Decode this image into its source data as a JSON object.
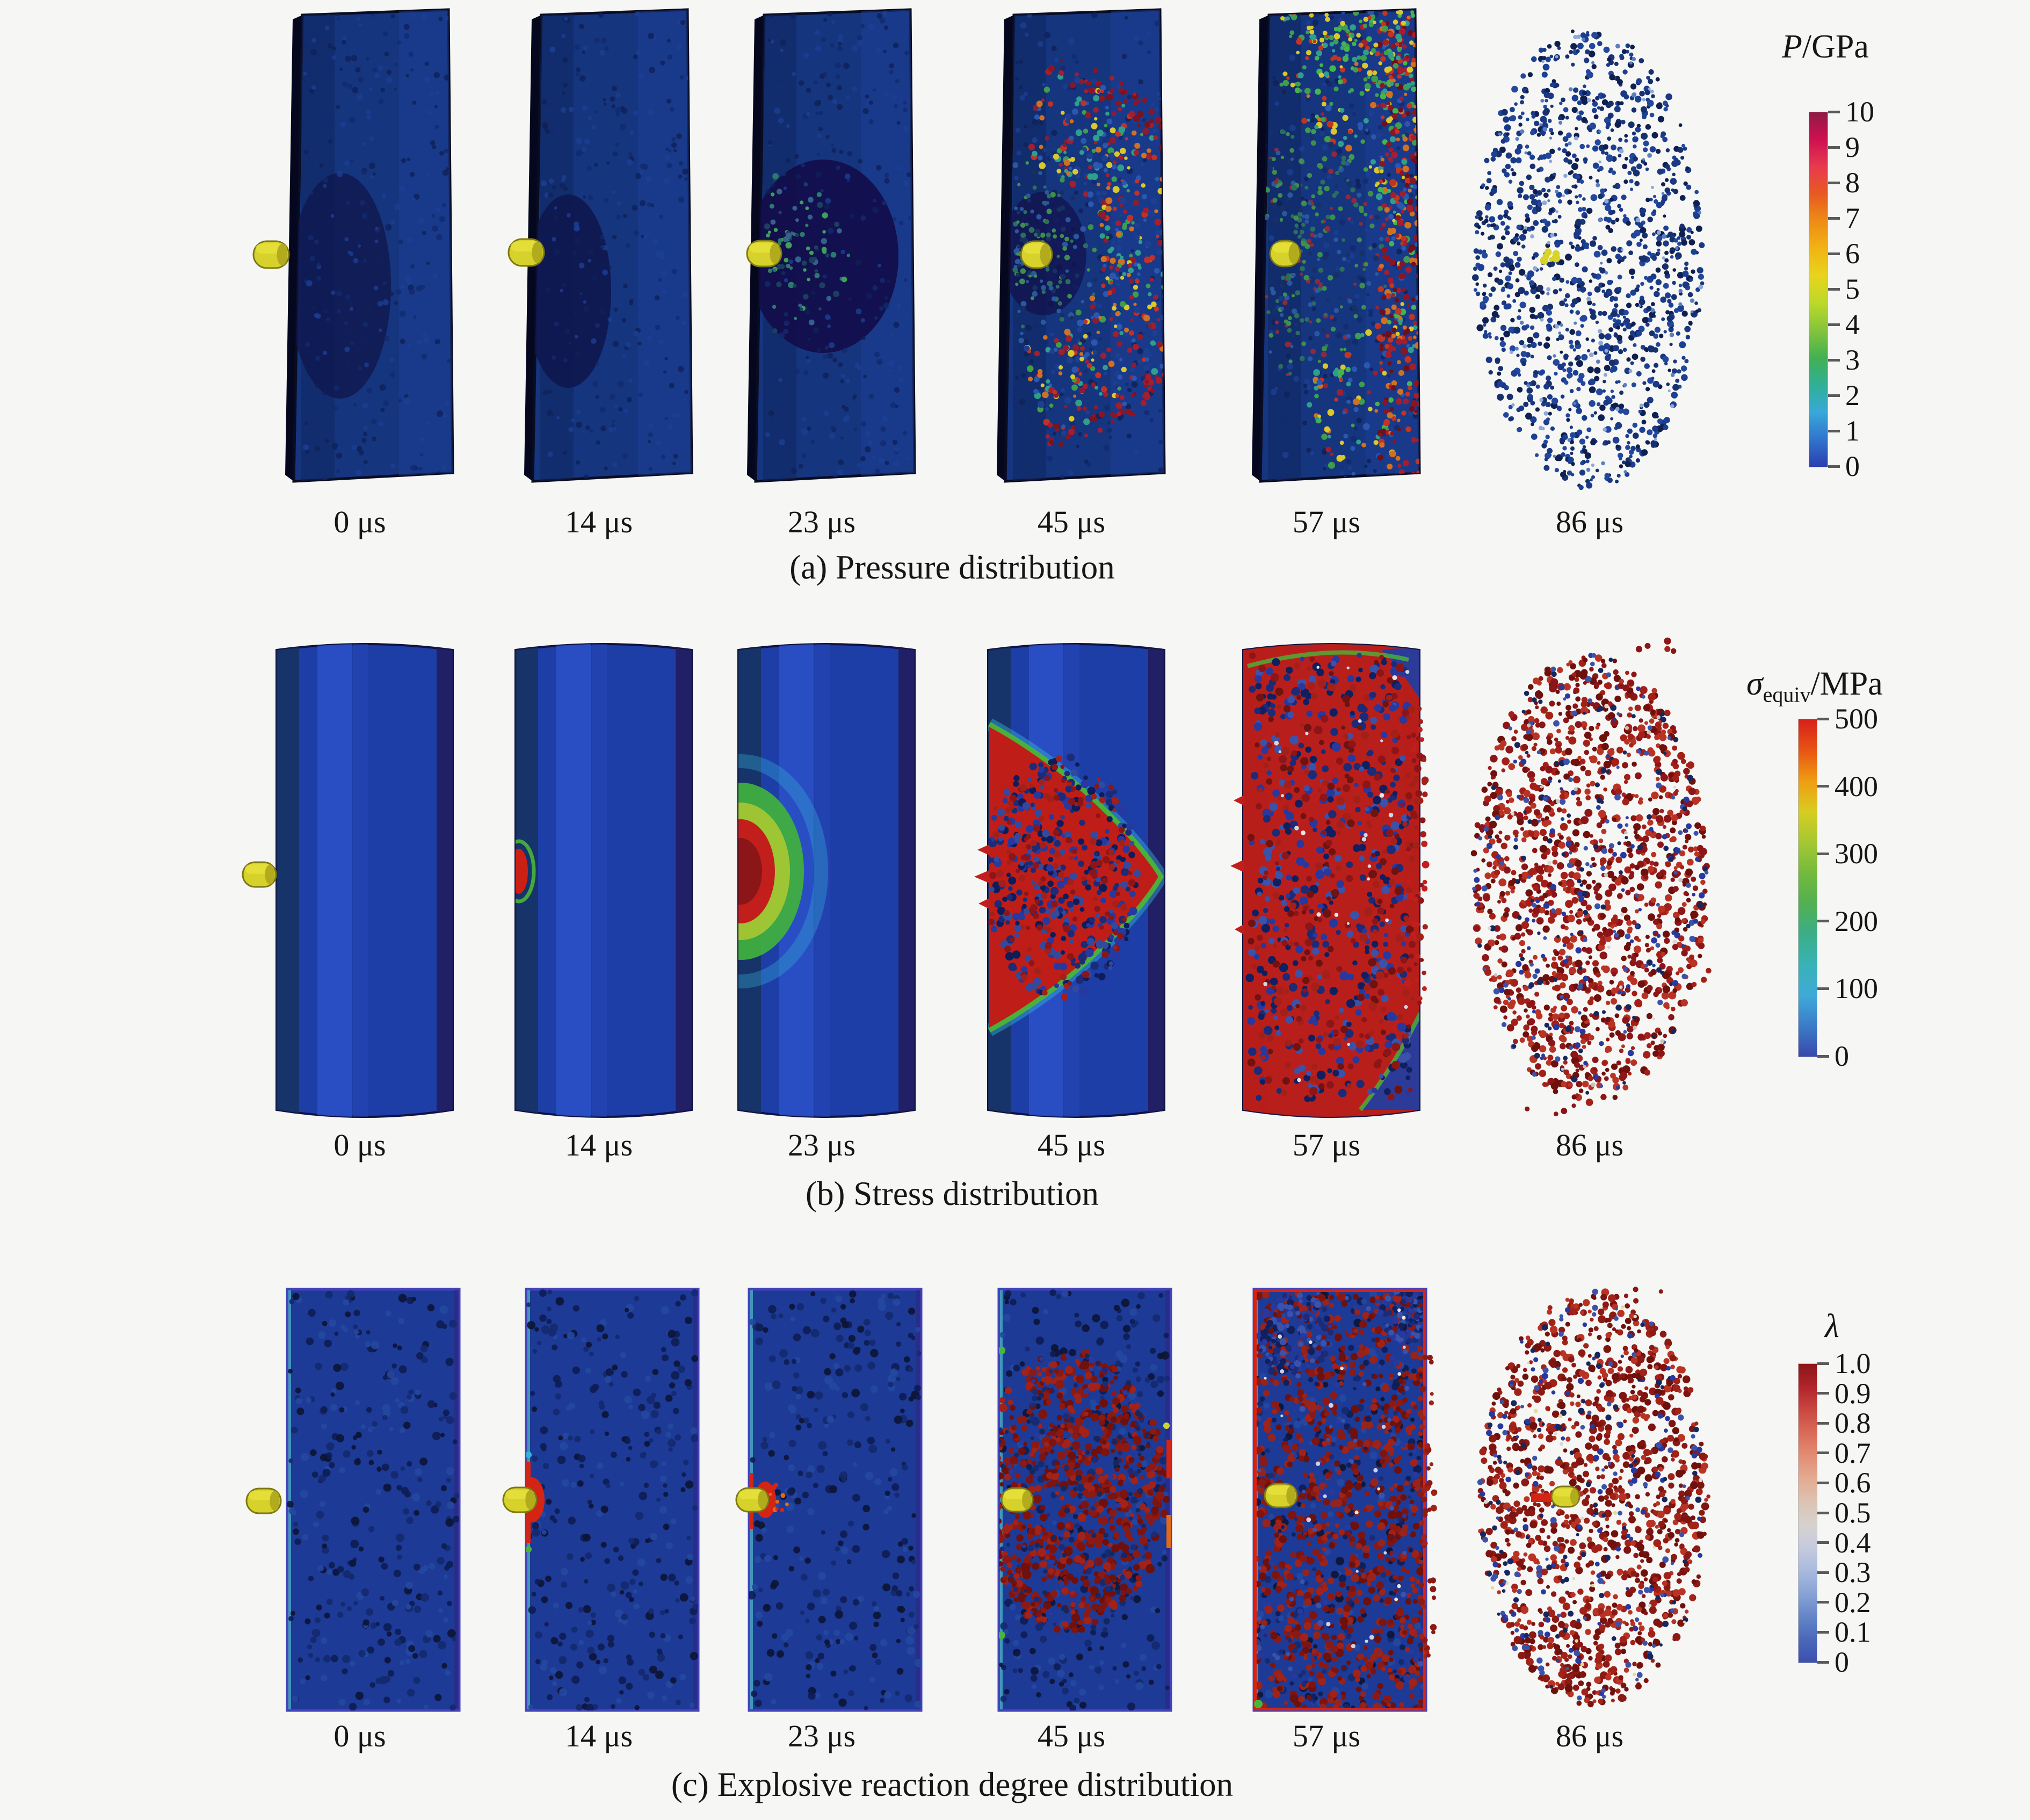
{
  "figure": {
    "rows": [
      {
        "id": "a",
        "caption": "(a) Pressure distribution",
        "times": [
          "0 μs",
          "14 μs",
          "23 μs",
          "45 μs",
          "57 μs",
          "86 μs"
        ],
        "colorbar": {
          "title_main": "P",
          "title_sub": "",
          "title_unit": "/GPa",
          "ticks": [
            "10",
            "9",
            "8",
            "7",
            "6",
            "5",
            "4",
            "3",
            "2",
            "1",
            "0"
          ],
          "colors": [
            "#8f1a45",
            "#cf1050",
            "#e83a4e",
            "#e85a22",
            "#ee8c16",
            "#f0b414",
            "#e8d41c",
            "#bcd82a",
            "#84c43c",
            "#42b051",
            "#2fb096",
            "#38a8da",
            "#3174cc",
            "#2b3eb0"
          ]
        }
      },
      {
        "id": "b",
        "caption": "(b) Stress distribution",
        "times": [
          "0 μs",
          "14 μs",
          "23 μs",
          "45 μs",
          "57 μs",
          "86 μs"
        ],
        "colorbar": {
          "title_main": "σ",
          "title_sub": "equiv",
          "title_unit": "/MPa",
          "ticks": [
            "500",
            "400",
            "300",
            "200",
            "100",
            "0"
          ],
          "colors": [
            "#d81f1a",
            "#e85313",
            "#f09c12",
            "#d8cc20",
            "#a6c832",
            "#74ba3c",
            "#52b052",
            "#3cae86",
            "#38b2b6",
            "#40aad8",
            "#3a7cc8",
            "#3948ac"
          ]
        }
      },
      {
        "id": "c",
        "caption": "(c) Explosive reaction degree distribution",
        "times": [
          "0 μs",
          "14 μs",
          "23 μs",
          "45 μs",
          "57 μs",
          "86 μs"
        ],
        "colorbar": {
          "title_main": "λ",
          "title_sub": "",
          "title_unit": "",
          "ticks": [
            "1.0",
            "0.9",
            "0.8",
            "0.7",
            "0.6",
            "0.5",
            "0.4",
            "0.3",
            "0.2",
            "0.1",
            "0"
          ],
          "colors": [
            "#8c1518",
            "#b1242a",
            "#c94741",
            "#da6b58",
            "#e28d74",
            "#e3ab92",
            "#dcc3b2",
            "#d5d2cf",
            "#c5cade",
            "#a9bade",
            "#88a3d6",
            "#6585c8",
            "#4a68ba",
            "#3c50ae"
          ]
        }
      }
    ],
    "palette": {
      "projectile_yellow": "#d6d12b",
      "explosive_blue": "#1d3da2",
      "shock_red": "#c02019",
      "reacted_dark_red": "#8c1a14",
      "background": "#f6f6f4"
    }
  }
}
